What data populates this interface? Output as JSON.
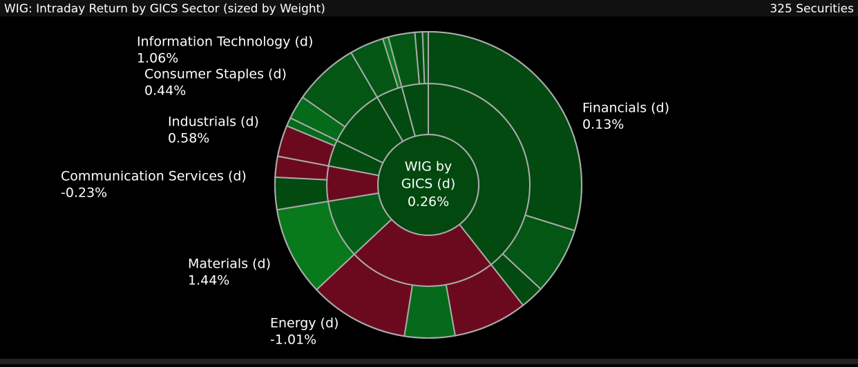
{
  "header": {
    "title": "WIG: Intraday Return by GICS Sector (sized by Weight)",
    "count": "325 Securities"
  },
  "chart_data": {
    "type": "sunburst",
    "center_label": "WIG by GICS (d)",
    "center_value": 0.26,
    "center_value_label": "0.26%",
    "categories": [
      "Financials (d)",
      "Energy (d)",
      "Materials (d)",
      "Communication Services (d)",
      "Industrials (d)",
      "Consumer Staples (d)",
      "Information Technology (d)",
      null
    ],
    "weights": [
      39.4,
      23.6,
      9.4,
      5.6,
      4.2,
      9.4,
      4.2,
      4.2
    ],
    "values": [
      0.13,
      -1.01,
      1.44,
      -0.23,
      0.58,
      0.44,
      1.06,
      null
    ],
    "value_labels": [
      "0.13%",
      "-1.01%",
      "1.44%",
      "-0.23%",
      "0.58%",
      "0.44%",
      "1.06%",
      null
    ],
    "colors": [
      "#024a10",
      "#6b0a1e",
      "#055e17",
      "#6b0a1e",
      "#024a10",
      "#024a10",
      "#024a10",
      "#024a10"
    ],
    "children": [
      [
        29.9,
        7.1,
        2.5
      ],
      [
        7.8,
        5.3,
        10.5
      ],
      [
        9.4
      ],
      [
        3.4,
        2.2
      ],
      [
        3.3,
        0.9
      ],
      [
        2.5,
        6.9
      ],
      [
        3.6,
        0.6
      ],
      [
        2.8,
        0.8,
        0.6
      ]
    ],
    "child_colors": [
      [
        "#024a10",
        "#035614",
        "#024a10"
      ],
      [
        "#6b0a1e",
        "#056a19",
        "#6b0a1e"
      ],
      [
        "#087a1c"
      ],
      [
        "#024a10",
        "#6b0a1e"
      ],
      [
        "#6b0a1e",
        "#056a19"
      ],
      [
        "#056a19",
        "#035614"
      ],
      [
        "#035614",
        "#087a1c"
      ],
      [
        "#035614",
        "#024a10",
        "#035614"
      ]
    ]
  }
}
